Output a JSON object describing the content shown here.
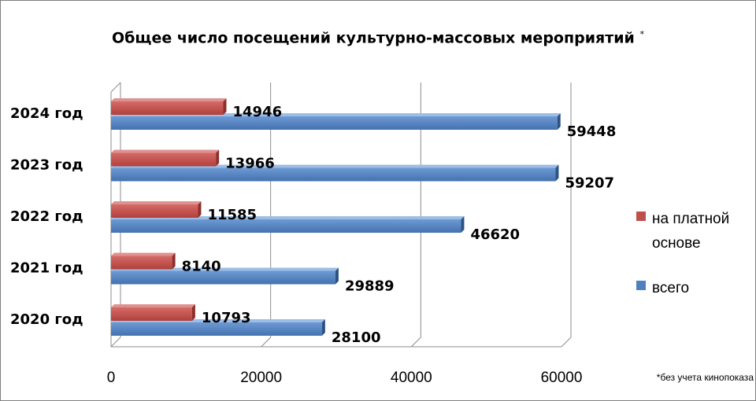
{
  "chart_data": {
    "type": "bar",
    "orientation": "horizontal",
    "title": "Общее число посещений культурно-массовых мероприятий",
    "title_mark": "*",
    "categories": [
      "2024 год",
      "2023 год",
      "2022 год",
      "2021 год",
      "2020 год"
    ],
    "series": [
      {
        "name": "на платной основе",
        "color": "#c0504d",
        "values": [
          14946,
          13966,
          11585,
          8140,
          10793
        ]
      },
      {
        "name": "всего",
        "color": "#4f81bd",
        "values": [
          59448,
          59207,
          46620,
          29889,
          28100
        ]
      }
    ],
    "xlim": [
      0,
      60000
    ],
    "xticks": [
      0,
      20000,
      40000,
      60000
    ],
    "grid": true,
    "legend_position": "right"
  },
  "legend": {
    "paid_line1": "на платной",
    "paid_line2": "основе",
    "total": "всего"
  },
  "footnote": "*без учета кинопоказа"
}
